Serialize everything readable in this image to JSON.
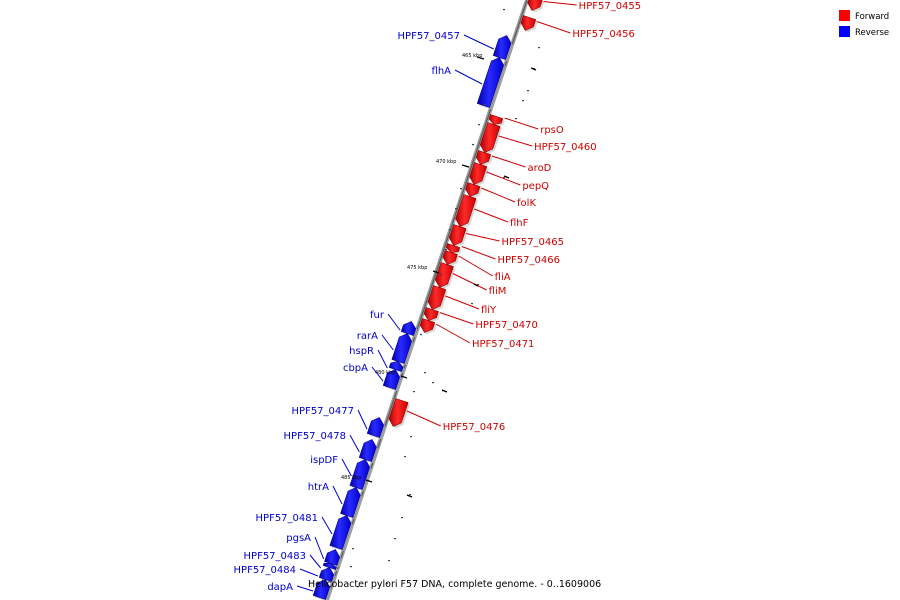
{
  "caption": "Helicobacter pylori F57 DNA, complete genome. - 0..1609006",
  "legend": [
    {
      "label": "Forward",
      "color": "#ff0000"
    },
    {
      "label": "Reverse",
      "color": "#0000ff"
    }
  ],
  "ticks": [
    "465 kbp",
    "470 kbp",
    "475 kbp",
    "480 kbp",
    "485 kbp"
  ],
  "genes_forward": [
    "HPF57_0455",
    "HPF57_0456",
    "rpsO",
    "HPF57_0460",
    "aroD",
    "pepQ",
    "folK",
    "flhF",
    "HPF57_0465",
    "HPF57_0466",
    "fliA",
    "fliM",
    "fliY",
    "HPF57_0470",
    "HPF57_0471",
    "HPF57_0476"
  ],
  "genes_reverse": [
    "HPF57_0457",
    "flhA",
    "fur",
    "rarA",
    "hspR",
    "cbpA",
    "HPF57_0477",
    "HPF57_0478",
    "ispDF",
    "htrA",
    "HPF57_0481",
    "pgsA",
    "HPF57_0483",
    "HPF57_0484",
    "dapA"
  ]
}
